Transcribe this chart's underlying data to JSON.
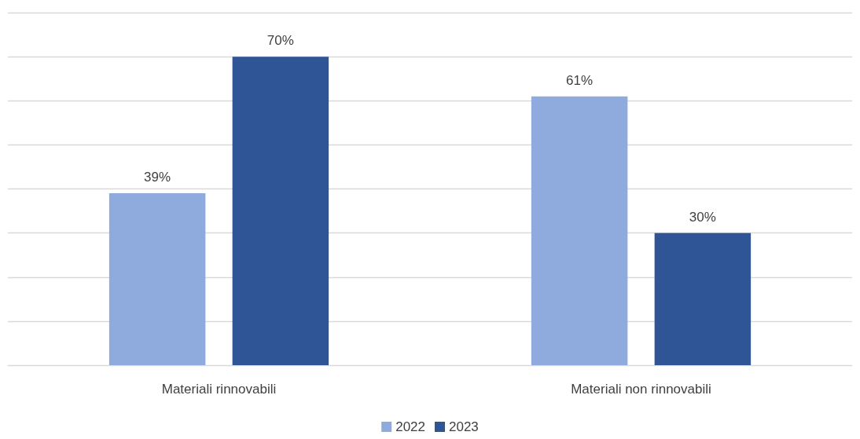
{
  "chart_data": {
    "type": "bar",
    "categories": [
      "Materiali rinnovabili",
      "Materiali non rinnovabili"
    ],
    "series": [
      {
        "name": "2022",
        "color": "#8faadc",
        "values": [
          39,
          61
        ],
        "value_labels": [
          "39%",
          "61%"
        ]
      },
      {
        "name": "2023",
        "color": "#2f5597",
        "values": [
          70,
          30
        ],
        "value_labels": [
          "70%",
          "30%"
        ]
      }
    ],
    "ylim": [
      0,
      80
    ],
    "yticks": [
      {
        "value": 0,
        "label": null
      },
      {
        "value": 10,
        "label": null
      },
      {
        "value": 20,
        "label": null
      },
      {
        "value": 30,
        "label": null
      },
      {
        "value": 40,
        "label": null
      },
      {
        "value": 50,
        "label": null
      },
      {
        "value": 60,
        "label": null
      },
      {
        "value": 70,
        "label": null
      },
      {
        "value": 80,
        "label": null
      }
    ],
    "grid": "y",
    "legend": "bottom",
    "tick_labels": "x"
  }
}
